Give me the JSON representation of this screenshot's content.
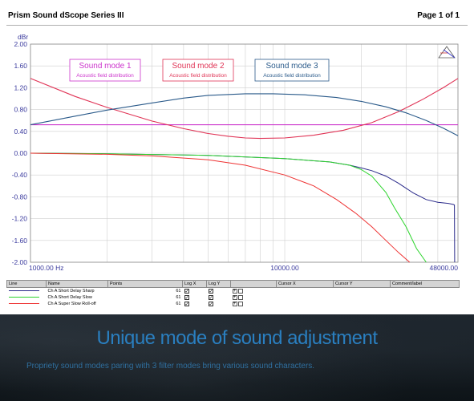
{
  "header": {
    "title": "Prism Sound dScope Series III",
    "page": "Page 1 of 1"
  },
  "chart_data": {
    "type": "line",
    "ylabel": "dBr",
    "xlabel": "",
    "x_scale": "log",
    "xlim": [
      1000,
      48000
    ],
    "ylim": [
      -2.0,
      2.0
    ],
    "y_ticks": [
      "2.00",
      "1.60",
      "1.20",
      "0.80",
      "0.40",
      "0.00",
      "-0.40",
      "-0.80",
      "-1.20",
      "-1.60",
      "-2.00"
    ],
    "x_ticks": [
      {
        "value": 1000,
        "label": "1000.00 Hz"
      },
      {
        "value": 10000,
        "label": "10000.00"
      },
      {
        "value": 48000,
        "label": "48000.00"
      }
    ],
    "grid": true,
    "series": [
      {
        "name": "Ch A Short Delay Sharp",
        "color": "#2a2a8a",
        "x": [
          1000,
          2000,
          5000,
          10000,
          15000,
          18000,
          20000,
          22000,
          25000,
          28000,
          32000,
          36000,
          40000,
          44000,
          46000,
          46500,
          46600
        ],
        "y": [
          0.0,
          -0.01,
          -0.04,
          -0.1,
          -0.16,
          -0.22,
          -0.27,
          -0.32,
          -0.42,
          -0.55,
          -0.73,
          -0.85,
          -0.9,
          -0.92,
          -0.94,
          -0.95,
          -2.0
        ]
      },
      {
        "name": "Ch A Short Delay Slow",
        "color": "#2bd42b",
        "x": [
          1000,
          2000,
          5000,
          10000,
          15000,
          18000,
          20000,
          22000,
          25000,
          27000,
          30000,
          33000,
          36000
        ],
        "y": [
          0.0,
          -0.01,
          -0.04,
          -0.1,
          -0.16,
          -0.22,
          -0.3,
          -0.42,
          -0.72,
          -1.0,
          -1.35,
          -1.75,
          -2.0
        ]
      },
      {
        "name": "Ch A Super Slow Roll-off",
        "color": "#ee3333",
        "x": [
          1000,
          2000,
          3000,
          5000,
          7000,
          10000,
          13000,
          16000,
          19000,
          22000,
          25000,
          28000,
          31000
        ],
        "y": [
          0.0,
          -0.02,
          -0.05,
          -0.12,
          -0.22,
          -0.4,
          -0.6,
          -0.85,
          -1.1,
          -1.35,
          -1.6,
          -1.82,
          -2.0
        ]
      }
    ],
    "mode_curves": [
      {
        "name": "Sound mode 1",
        "color": "#cc33cc",
        "x": [
          1000,
          48000
        ],
        "y": [
          0.52,
          0.52
        ]
      },
      {
        "name": "Sound mode 2",
        "color": "#e03355",
        "x": [
          1000,
          1500,
          2000,
          3000,
          4000,
          5000,
          6000,
          7000,
          8000,
          10000,
          13000,
          17000,
          22000,
          28000,
          35000,
          42000,
          48000
        ],
        "y": [
          1.37,
          1.04,
          0.84,
          0.59,
          0.45,
          0.36,
          0.31,
          0.28,
          0.27,
          0.28,
          0.33,
          0.42,
          0.56,
          0.76,
          0.99,
          1.2,
          1.37
        ]
      },
      {
        "name": "Sound mode 3",
        "color": "#2a5a8a",
        "x": [
          1000,
          1500,
          2000,
          3000,
          4000,
          5000,
          7000,
          9000,
          12000,
          16000,
          20000,
          25000,
          30000,
          36000,
          42000,
          48000
        ],
        "y": [
          0.52,
          0.68,
          0.79,
          0.92,
          1.01,
          1.06,
          1.09,
          1.09,
          1.07,
          1.02,
          0.95,
          0.85,
          0.74,
          0.6,
          0.46,
          0.32
        ]
      }
    ],
    "mode_boxes": [
      {
        "title": "Sound mode 1",
        "subtitle": "Acoustic field distribution",
        "color": "#cc33cc"
      },
      {
        "title": "Sound mode 2",
        "subtitle": "Acoustic field distribution",
        "color": "#e03355"
      },
      {
        "title": "Sound mode 3",
        "subtitle": "Acoustic field distribution",
        "color": "#2a5a8a"
      }
    ]
  },
  "legend_table": {
    "headers": [
      "Line",
      "Name",
      "Points",
      "Log X",
      "Log Y",
      "",
      "Cursor X",
      "Cursor Y",
      "Comment/label"
    ],
    "rows": [
      {
        "name": "Ch A Short Delay Sharp",
        "points": "61",
        "color": "#2a2a8a"
      },
      {
        "name": "Ch A Short Delay Slow",
        "points": "61",
        "color": "#2bd42b"
      },
      {
        "name": "Ch A Super Slow Roll-off",
        "points": "61",
        "color": "#ee3333"
      }
    ]
  },
  "footer": {
    "title": "Unique mode of sound adjustment",
    "subtitle": "Propriety sound modes paring with 3 filter modes bring various sound characters."
  }
}
